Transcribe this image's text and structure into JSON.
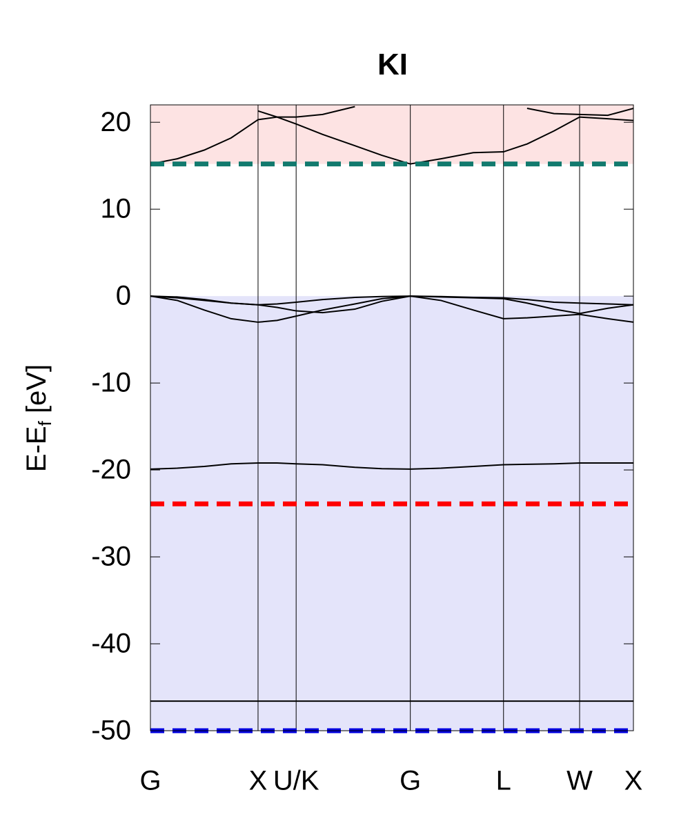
{
  "chart_data": {
    "type": "line",
    "title": "KI",
    "y_label": {
      "main": "E-E",
      "subscript": "f",
      "tail": " [eV]"
    },
    "xlim": [
      0,
      4.488
    ],
    "ylim": [
      -50,
      22
    ],
    "yticks": [
      -50,
      -40,
      -30,
      -20,
      -10,
      0,
      10,
      20
    ],
    "xticks": [
      {
        "value": 0,
        "label": "G"
      },
      {
        "value": 1,
        "label": "X"
      },
      {
        "value": 1.354,
        "label": "U/K"
      },
      {
        "value": 2.415,
        "label": "G"
      },
      {
        "value": 3.281,
        "label": "L"
      },
      {
        "value": 3.988,
        "label": "W"
      },
      {
        "value": 4.488,
        "label": "X"
      }
    ],
    "regions": [
      {
        "from": 15.2,
        "to": 22,
        "color": "#fde3e3"
      },
      {
        "from": -50,
        "to": 0,
        "color": "#e4e4fa"
      }
    ],
    "hlines": [
      {
        "value": 15.2,
        "color": "#127a6e"
      },
      {
        "value": -23.9,
        "color": "#ff0000"
      },
      {
        "value": -50,
        "color": "#0000e0"
      }
    ],
    "line_color": "#000000",
    "x": [
      0,
      0.25,
      0.5,
      0.75,
      1,
      1.177,
      1.354,
      1.6,
      1.9,
      2.15,
      2.415,
      2.7,
      3.0,
      3.281,
      3.5,
      3.75,
      3.988,
      4.25,
      4.488
    ],
    "series": [
      {
        "values": [
          -46.6,
          -46.6,
          -46.6,
          -46.6,
          -46.6,
          -46.6,
          -46.6,
          -46.6,
          -46.6,
          -46.6,
          -46.6,
          -46.6,
          -46.6,
          -46.6,
          -46.6,
          -46.6,
          -46.6,
          -46.6,
          -46.6
        ]
      },
      {
        "values": [
          -19.9,
          -19.8,
          -19.6,
          -19.3,
          -19.2,
          -19.2,
          -19.3,
          -19.4,
          -19.7,
          -19.85,
          -19.9,
          -19.8,
          -19.6,
          -19.4,
          -19.35,
          -19.3,
          -19.2,
          -19.2,
          -19.2
        ]
      },
      {
        "values": [
          0,
          -0.5,
          -1.6,
          -2.6,
          -3.0,
          -2.8,
          -2.3,
          -1.6,
          -0.9,
          -0.3,
          0,
          -0.5,
          -1.6,
          -2.6,
          -2.5,
          -2.3,
          -2.1,
          -2.6,
          -3.0
        ]
      },
      {
        "values": [
          0,
          -0.2,
          -0.5,
          -0.8,
          -1.0,
          -1.3,
          -1.7,
          -1.9,
          -1.5,
          -0.6,
          0,
          -0.1,
          -0.2,
          -0.3,
          -0.8,
          -1.5,
          -2.0,
          -1.4,
          -1.0
        ]
      },
      {
        "values": [
          0,
          -0.1,
          -0.4,
          -0.8,
          -1.0,
          -0.9,
          -0.7,
          -0.4,
          -0.15,
          -0.05,
          0,
          -0.05,
          -0.15,
          -0.2,
          -0.4,
          -0.7,
          -0.8,
          -0.9,
          -1.0
        ]
      },
      {
        "values": [
          15.2,
          15.8,
          16.8,
          18.2,
          20.3,
          20.6,
          19.8,
          18.6,
          17.3,
          16.2,
          15.2,
          15.8,
          16.5,
          16.6,
          17.5,
          19.0,
          20.6,
          20.4,
          20.2
        ]
      },
      {
        "values": [
          null,
          null,
          null,
          null,
          21.3,
          20.6,
          20.6,
          20.9,
          21.8,
          null,
          null,
          null,
          null,
          null,
          21.6,
          21.0,
          20.9,
          20.8,
          21.6
        ]
      }
    ]
  }
}
